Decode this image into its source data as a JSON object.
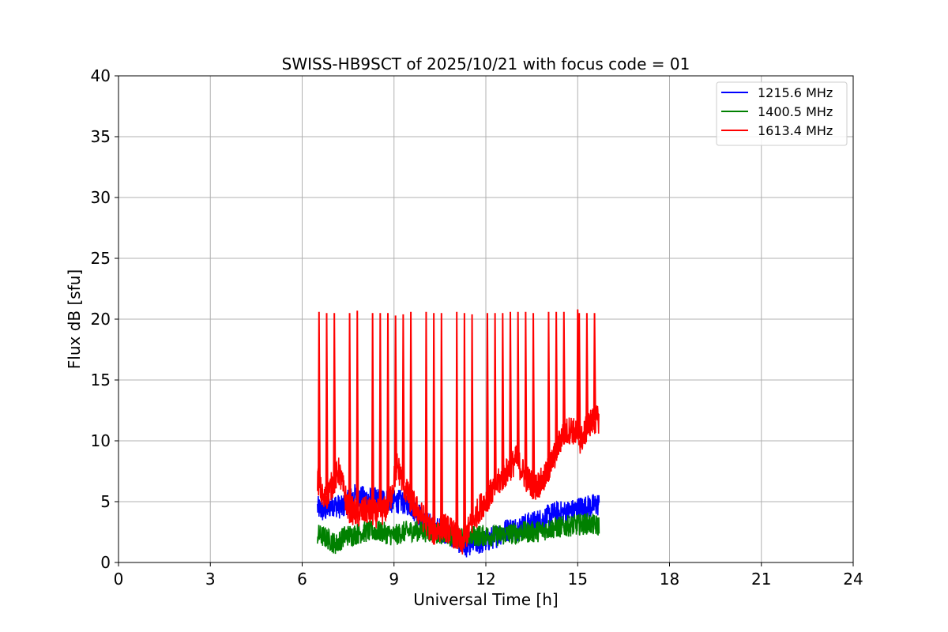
{
  "chart_data": {
    "type": "line",
    "title": "SWISS-HB9SCT of 2025/10/21 with focus code = 01",
    "xlabel": "Universal Time [h]",
    "ylabel": "Flux dB [sfu]",
    "xlim": [
      0,
      24
    ],
    "ylim": [
      0,
      40
    ],
    "xticks": [
      0,
      3,
      6,
      9,
      12,
      15,
      18,
      21,
      24
    ],
    "yticks": [
      0,
      5,
      10,
      15,
      20,
      25,
      30,
      35,
      40
    ],
    "grid": true,
    "legend_position": "top-right",
    "series": [
      {
        "name": "1215.6 MHz",
        "color": "#0000ff",
        "noise": 1.0,
        "x": [
          6.5,
          6.7,
          7.0,
          7.3,
          7.7,
          8.0,
          8.3,
          8.6,
          8.9,
          9.2,
          9.5,
          9.8,
          10.0,
          10.2,
          10.5,
          10.8,
          11.1,
          11.3,
          11.5,
          11.8,
          12.1,
          12.4,
          12.7,
          13.0,
          13.3,
          13.6,
          13.9,
          14.2,
          14.5,
          14.8,
          15.1,
          15.4,
          15.7
        ],
        "y": [
          4.5,
          4.2,
          4.8,
          4.5,
          5.5,
          5.3,
          5.2,
          5.2,
          5.0,
          5.0,
          4.8,
          4.0,
          3.3,
          3.0,
          2.7,
          2.4,
          1.8,
          1.3,
          1.6,
          1.6,
          1.9,
          2.3,
          2.7,
          2.8,
          3.1,
          3.3,
          3.6,
          4.0,
          4.1,
          4.2,
          4.5,
          4.6,
          4.8
        ]
      },
      {
        "name": "1400.5 MHz",
        "color": "#008000",
        "noise": 0.9,
        "x": [
          6.5,
          6.8,
          7.1,
          7.4,
          7.7,
          8.0,
          8.3,
          8.6,
          9.0,
          9.3,
          9.6,
          9.9,
          10.2,
          10.5,
          10.8,
          11.1,
          11.4,
          11.7,
          12.0,
          12.3,
          12.6,
          12.9,
          13.2,
          13.5,
          13.8,
          14.1,
          14.4,
          14.7,
          15.0,
          15.3,
          15.7
        ],
        "y": [
          2.3,
          2.0,
          1.5,
          2.2,
          2.3,
          2.5,
          2.6,
          2.5,
          2.2,
          2.5,
          2.6,
          2.6,
          2.5,
          2.4,
          2.2,
          2.0,
          2.2,
          2.2,
          2.2,
          2.2,
          2.3,
          2.4,
          2.5,
          2.5,
          2.6,
          2.8,
          2.9,
          3.0,
          3.1,
          3.2,
          3.0
        ]
      },
      {
        "name": "1613.4 MHz",
        "color": "#ff0000",
        "noise": 1.2,
        "x": [
          6.5,
          6.7,
          6.9,
          7.2,
          7.5,
          7.8,
          8.1,
          8.4,
          8.7,
          8.9,
          9.1,
          9.4,
          9.7,
          10.0,
          10.3,
          10.6,
          10.9,
          11.2,
          11.5,
          11.8,
          12.1,
          12.4,
          12.7,
          13.0,
          13.3,
          13.6,
          13.9,
          14.2,
          14.5,
          14.8,
          15.1,
          15.4,
          15.7
        ],
        "y": [
          7.0,
          5.0,
          6.0,
          7.5,
          4.5,
          4.0,
          4.3,
          4.0,
          4.3,
          5.5,
          8.0,
          5.8,
          4.5,
          3.5,
          2.5,
          3.0,
          2.5,
          1.5,
          3.0,
          4.5,
          5.5,
          6.5,
          7.5,
          8.5,
          7.0,
          6.2,
          6.8,
          8.5,
          10.5,
          11.0,
          10.0,
          11.5,
          11.8
        ]
      }
    ],
    "spikes": {
      "series": "1613.4 MHz",
      "peak_values": [
        20.6,
        20.5,
        20.5,
        20.5,
        20.7,
        20.5,
        20.5,
        20.3,
        20.4,
        20.6,
        20.6,
        20.5,
        20.5,
        20.6,
        20.5,
        20.4,
        20.5,
        20.5,
        20.5,
        20.6,
        20.6,
        20.5,
        20.6,
        20.6,
        20.6,
        20.5,
        20.5,
        20.5,
        20.5,
        20.6,
        20.8
      ],
      "times": [
        6.55,
        6.8,
        7.05,
        7.55,
        7.8,
        8.3,
        8.55,
        9.05,
        9.3,
        9.55,
        10.05,
        10.3,
        10.55,
        11.05,
        11.3,
        11.55,
        12.05,
        12.3,
        12.55,
        13.05,
        13.3,
        13.55,
        14.05,
        14.3,
        14.55,
        15.05,
        15.3,
        15.55,
        8.8,
        12.8,
        15.0
      ]
    }
  }
}
